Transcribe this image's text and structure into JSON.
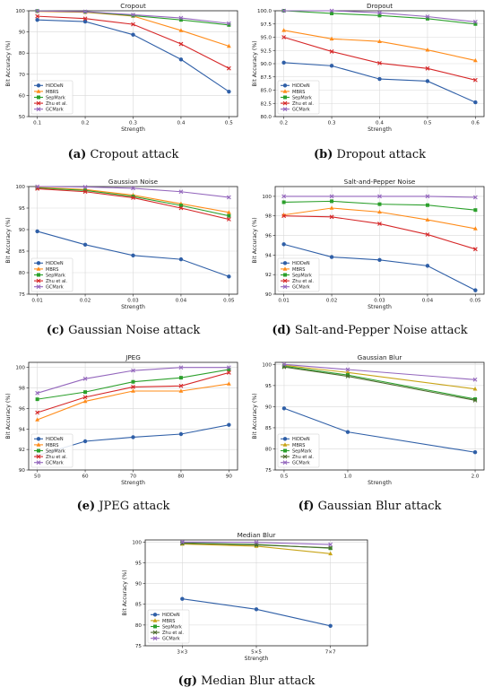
{
  "series_names": [
    "HiDDeN",
    "MBRS",
    "SepMark",
    "Zhu et al.",
    "GCMark"
  ],
  "colors": {
    "HiDDeN": "#2f5fa7",
    "MBRS": "#ff8c1a",
    "SepMark": "#2ca02c",
    "Zhu et al.": "#d62728",
    "GCMark": "#9467bd",
    "MBRS_g": "#c8a417",
    "ZhuEtAl_g": "#4d6b2d"
  },
  "chart_data": [
    {
      "id": "a",
      "type": "line",
      "title": "Cropout",
      "xlabel": "Strength",
      "ylabel": "Bit Accuracy (%)",
      "caption": {
        "letter": "(a)",
        "text": "Cropout attack"
      },
      "x": [
        0.1,
        0.2,
        0.3,
        0.4,
        0.5
      ],
      "xticks": [
        "0.1",
        "0.2",
        "0.3",
        "0.4",
        "0.5"
      ],
      "ylim": [
        50,
        100
      ],
      "yticks": [
        "50",
        "60",
        "70",
        "80",
        "90",
        "100"
      ],
      "grid": true,
      "legend": "lower-left",
      "series": [
        {
          "name": "HiDDeN",
          "values": [
            95.7,
            94.9,
            88.7,
            77.0,
            61.8
          ]
        },
        {
          "name": "MBRS",
          "values": [
            99.7,
            99.3,
            97.5,
            90.7,
            83.3
          ]
        },
        {
          "name": "SepMark",
          "values": [
            99.9,
            99.5,
            97.7,
            95.7,
            93.3
          ]
        },
        {
          "name": "Zhu et al.",
          "values": [
            97.4,
            96.3,
            93.6,
            84.3,
            72.8
          ]
        },
        {
          "name": "GCMark",
          "values": [
            99.9,
            99.6,
            98.1,
            96.6,
            94.0
          ]
        }
      ]
    },
    {
      "id": "b",
      "type": "line",
      "title": "Dropout",
      "xlabel": "Strength",
      "ylabel": "Bit Accuracy (%)",
      "caption": {
        "letter": "(b)",
        "text": "Dropout attack"
      },
      "x": [
        0.2,
        0.3,
        0.4,
        0.5,
        0.6
      ],
      "xticks": [
        "0.2",
        "0.3",
        "0.4",
        "0.5",
        "0.6"
      ],
      "ylim": [
        80,
        100
      ],
      "yticks": [
        "80.0",
        "82.5",
        "85.0",
        "87.5",
        "90.0",
        "92.5",
        "95.0",
        "97.5",
        "100.0"
      ],
      "grid": true,
      "legend": "lower-left",
      "series": [
        {
          "name": "HiDDeN",
          "values": [
            90.2,
            89.6,
            87.1,
            86.7,
            82.7
          ]
        },
        {
          "name": "MBRS",
          "values": [
            96.3,
            94.7,
            94.2,
            92.6,
            90.6
          ]
        },
        {
          "name": "SepMark",
          "values": [
            100.0,
            99.5,
            99.1,
            98.5,
            97.5
          ]
        },
        {
          "name": "Zhu et al.",
          "values": [
            95.0,
            92.3,
            90.1,
            89.1,
            86.9
          ]
        },
        {
          "name": "GCMark",
          "values": [
            100.0,
            100.0,
            99.6,
            98.9,
            97.9
          ]
        }
      ]
    },
    {
      "id": "c",
      "type": "line",
      "title": "Gaussian Noise",
      "xlabel": "Strength",
      "ylabel": "Bit Accuracy (%)",
      "caption": {
        "letter": "(c)",
        "text": "Gaussian Noise attack"
      },
      "x": [
        0.01,
        0.02,
        0.03,
        0.04,
        0.05
      ],
      "xticks": [
        "0.01",
        "0.02",
        "0.03",
        "0.04",
        "0.05"
      ],
      "ylim": [
        75,
        100
      ],
      "yticks": [
        "75",
        "80",
        "85",
        "90",
        "95",
        "100"
      ],
      "grid": true,
      "legend": "lower-left",
      "series": [
        {
          "name": "HiDDeN",
          "values": [
            89.6,
            86.5,
            84.0,
            83.1,
            79.1
          ]
        },
        {
          "name": "MBRS",
          "values": [
            99.8,
            99.3,
            98.0,
            96.0,
            94.0
          ]
        },
        {
          "name": "SepMark",
          "values": [
            99.7,
            99.1,
            97.7,
            95.6,
            93.2
          ]
        },
        {
          "name": "Zhu et al.",
          "values": [
            99.5,
            98.8,
            97.4,
            95.0,
            92.4
          ]
        },
        {
          "name": "GCMark",
          "values": [
            100.0,
            99.9,
            99.6,
            98.8,
            97.5
          ]
        }
      ]
    },
    {
      "id": "d",
      "type": "line",
      "title": "Salt-and-Pepper Noise",
      "xlabel": "Strength",
      "ylabel": "Bit Accuracy (%)",
      "caption": {
        "letter": "(d)",
        "text": "Salt-and-Pepper Noise attack"
      },
      "x": [
        0.01,
        0.02,
        0.03,
        0.04,
        0.05
      ],
      "xticks": [
        "0.01",
        "0.02",
        "0.03",
        "0.04",
        "0.05"
      ],
      "ylim": [
        90,
        101
      ],
      "yticks": [
        "90",
        "92",
        "94",
        "96",
        "98",
        "100"
      ],
      "grid": true,
      "legend": "lower-left",
      "series": [
        {
          "name": "HiDDeN",
          "values": [
            95.1,
            93.8,
            93.5,
            92.9,
            90.4
          ]
        },
        {
          "name": "MBRS",
          "values": [
            98.1,
            98.8,
            98.4,
            97.6,
            96.7
          ]
        },
        {
          "name": "SepMark",
          "values": [
            99.4,
            99.5,
            99.2,
            99.1,
            98.6
          ]
        },
        {
          "name": "Zhu et al.",
          "values": [
            98.0,
            97.9,
            97.2,
            96.1,
            94.6
          ]
        },
        {
          "name": "GCMark",
          "values": [
            100.0,
            100.0,
            100.0,
            100.0,
            99.9
          ]
        }
      ]
    },
    {
      "id": "e",
      "type": "line",
      "title": "JPEG",
      "xlabel": "Strength",
      "ylabel": "Bit Accuracy (%)",
      "caption": {
        "letter": "(e)",
        "text": "JPEG attack"
      },
      "x": [
        50,
        60,
        70,
        80,
        90
      ],
      "xticks": [
        "50",
        "60",
        "70",
        "80",
        "90"
      ],
      "ylim": [
        90,
        100.5
      ],
      "yticks": [
        "90",
        "92",
        "94",
        "96",
        "98",
        "100"
      ],
      "grid": true,
      "legend": "lower-left",
      "series": [
        {
          "name": "HiDDeN",
          "values": [
            91.4,
            92.8,
            93.2,
            93.5,
            94.4
          ]
        },
        {
          "name": "MBRS",
          "values": [
            94.9,
            96.7,
            97.7,
            97.7,
            98.4
          ]
        },
        {
          "name": "SepMark",
          "values": [
            96.9,
            97.6,
            98.6,
            99.0,
            99.8
          ]
        },
        {
          "name": "Zhu et al.",
          "values": [
            95.6,
            97.1,
            98.1,
            98.2,
            99.5
          ]
        },
        {
          "name": "GCMark",
          "values": [
            97.5,
            98.9,
            99.7,
            100.0,
            100.0
          ]
        }
      ]
    },
    {
      "id": "f",
      "type": "line",
      "title": "Gaussian Blur",
      "xlabel": "Strength",
      "ylabel": "Bit Accuracy (%)",
      "caption": {
        "letter": "(f)",
        "text": "Gaussian Blur attack"
      },
      "x": [
        0.5,
        1.0,
        2.0
      ],
      "xticks": [
        "0.5",
        "1.0",
        "2.0"
      ],
      "xtick_values": [
        0.5,
        1.0,
        2.0
      ],
      "xlim": [
        0.43,
        2.07
      ],
      "ylim": [
        75,
        100.5
      ],
      "yticks": [
        "75",
        "80",
        "85",
        "90",
        "95",
        "100"
      ],
      "grid": true,
      "legend": "lower-left",
      "alt_colors": true,
      "series": [
        {
          "name": "HiDDeN",
          "values": [
            89.6,
            84.0,
            79.2
          ]
        },
        {
          "name": "MBRS",
          "values": [
            99.8,
            98.1,
            94.2
          ]
        },
        {
          "name": "SepMark",
          "values": [
            99.6,
            97.5,
            91.8
          ]
        },
        {
          "name": "Zhu et al.",
          "values": [
            99.4,
            97.2,
            91.5
          ]
        },
        {
          "name": "GCMark",
          "values": [
            100.0,
            98.8,
            96.4
          ]
        }
      ]
    },
    {
      "id": "g",
      "type": "line",
      "title": "Median Blur",
      "xlabel": "Strength",
      "ylabel": "Bit Accuracy (%)",
      "caption": {
        "letter": "(g)",
        "text": "Median Blur attack"
      },
      "x": [
        "3×3",
        "5×5",
        "7×7"
      ],
      "xticks": [
        "3×3",
        "5×5",
        "7×7"
      ],
      "ylim": [
        75,
        100.5
      ],
      "yticks": [
        "75",
        "80",
        "85",
        "90",
        "95",
        "100"
      ],
      "grid": true,
      "legend": "lower-left",
      "alt_colors": true,
      "series": [
        {
          "name": "HiDDeN",
          "values": [
            86.3,
            83.8,
            79.8
          ]
        },
        {
          "name": "MBRS",
          "values": [
            99.5,
            99.0,
            97.2
          ]
        },
        {
          "name": "SepMark",
          "values": [
            99.8,
            99.4,
            98.5
          ]
        },
        {
          "name": "Zhu et al.",
          "values": [
            99.7,
            99.3,
            98.6
          ]
        },
        {
          "name": "GCMark",
          "values": [
            100.0,
            99.9,
            99.4
          ]
        }
      ]
    }
  ]
}
